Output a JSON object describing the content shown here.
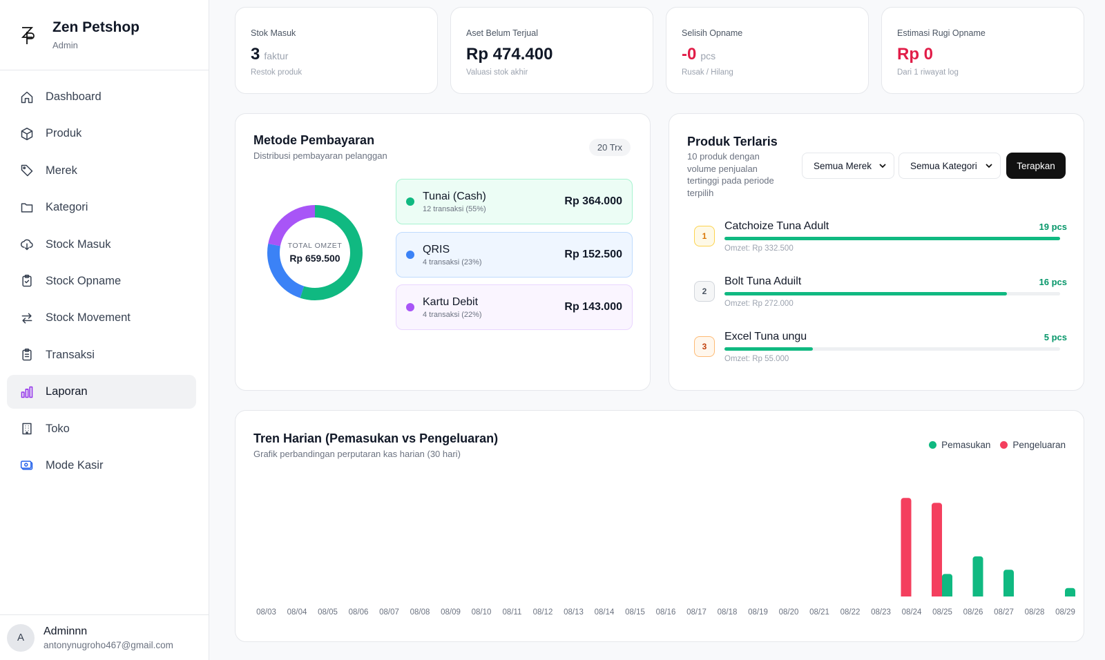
{
  "brand": {
    "name": "Zen Petshop",
    "role": "Admin",
    "logo_text": "ZP"
  },
  "nav": [
    {
      "label": "Dashboard",
      "icon": "home-icon",
      "active": false
    },
    {
      "label": "Produk",
      "icon": "box-icon",
      "active": false
    },
    {
      "label": "Merek",
      "icon": "tag-icon",
      "active": false
    },
    {
      "label": "Kategori",
      "icon": "folder-icon",
      "active": false
    },
    {
      "label": "Stock Masuk",
      "icon": "cloud-download-icon",
      "active": false
    },
    {
      "label": "Stock Opname",
      "icon": "clipboard-check-icon",
      "active": false
    },
    {
      "label": "Stock Movement",
      "icon": "arrows-swap-icon",
      "active": false
    },
    {
      "label": "Transaksi",
      "icon": "clipboard-list-icon",
      "active": false
    },
    {
      "label": "Laporan",
      "icon": "bar-chart-icon",
      "active": true
    },
    {
      "label": "Toko",
      "icon": "building-icon",
      "active": false
    },
    {
      "label": "Mode Kasir",
      "icon": "cash-register-icon",
      "active": false
    }
  ],
  "user": {
    "initial": "A",
    "name": "Adminnn",
    "email": "antonynugroho467@gmail.com"
  },
  "stats": [
    {
      "label": "Stok Masuk",
      "value": "3",
      "unit": "faktur",
      "sub": "Restok produk"
    },
    {
      "label": "Aset Belum Terjual",
      "value": "Rp 474.400",
      "unit": "",
      "sub": "Valuasi stok akhir"
    },
    {
      "label": "Selisih Opname",
      "value": "-0",
      "unit": "pcs",
      "sub": "Rusak / Hilang"
    },
    {
      "label": "Estimasi Rugi Opname",
      "value": "Rp 0",
      "unit": "",
      "sub": "Dari 1 riwayat log"
    }
  ],
  "payment": {
    "title": "Metode Pembayaran",
    "subtitle": "Distribusi pembayaran pelanggan",
    "badge": "20 Trx",
    "total_caption": "TOTAL OMZET",
    "total_value": "Rp 659.500",
    "methods": [
      {
        "name": "Tunai (Cash)",
        "meta": "12 transaksi (55%)",
        "amount": "Rp 364.000",
        "share": 55,
        "color": "#10b981",
        "bg": "#ecfdf5",
        "border": "#a7f3d0"
      },
      {
        "name": "QRIS",
        "meta": "4 transaksi (23%)",
        "amount": "Rp 152.500",
        "share": 23,
        "color": "#3b82f6",
        "bg": "#eff6ff",
        "border": "#bfdbfe"
      },
      {
        "name": "Kartu Debit",
        "meta": "4 transaksi (22%)",
        "amount": "Rp 143.000",
        "share": 22,
        "color": "#a855f7",
        "bg": "#faf5ff",
        "border": "#e9d5ff"
      }
    ]
  },
  "bestsellers": {
    "title": "Produk Terlaris",
    "subtitle": "10 produk dengan volume penjualan tertinggi pada periode terpilih",
    "filter_brand": "Semua Merek",
    "filter_category": "Semua Kategori",
    "apply_label": "Terapkan",
    "items": [
      {
        "rank": "1",
        "name": "Catchoize Tuna Adult",
        "qty": "19 pcs",
        "qty_value": 19,
        "omzet": "Omzet: Rp 332.500",
        "rank_bg": "#fef9e7",
        "rank_border": "#fcd34d",
        "rank_color": "#d97706"
      },
      {
        "rank": "2",
        "name": "Bolt Tuna Aduilt",
        "qty": "16 pcs",
        "qty_value": 16,
        "omzet": "Omzet: Rp 272.000",
        "rank_bg": "#f5f6f7",
        "rank_border": "#d1d5db",
        "rank_color": "#4b5563"
      },
      {
        "rank": "3",
        "name": "Excel Tuna ungu",
        "qty": "5 pcs",
        "qty_value": 5,
        "omzet": "Omzet: Rp 55.000",
        "rank_bg": "#fff7ed",
        "rank_border": "#fdba74",
        "rank_color": "#c2410c"
      }
    ]
  },
  "trend": {
    "title": "Tren Harian (Pemasukan vs Pengeluaran)",
    "subtitle": "Grafik perbandingan perputaran kas harian (30 hari)"
  },
  "chart_data": {
    "type": "bar",
    "categories": [
      "08/03",
      "08/04",
      "08/05",
      "08/06",
      "08/07",
      "08/08",
      "08/09",
      "08/10",
      "08/11",
      "08/12",
      "08/13",
      "08/14",
      "08/15",
      "08/16",
      "08/17",
      "08/18",
      "08/19",
      "08/20",
      "08/21",
      "08/22",
      "08/23",
      "08/24",
      "08/25",
      "08/26",
      "08/27",
      "08/28",
      "08/29"
    ],
    "series": [
      {
        "name": "Pemasukan",
        "color": "#10b981",
        "values": [
          0,
          0,
          0,
          0,
          0,
          0,
          0,
          0,
          0,
          0,
          0,
          0,
          0,
          0,
          0,
          0,
          0,
          0,
          0,
          0,
          0,
          0,
          32,
          57,
          38,
          0,
          12
        ]
      },
      {
        "name": "Pengeluaran",
        "color": "#f43f5e",
        "values": [
          0,
          0,
          0,
          0,
          0,
          0,
          0,
          0,
          0,
          0,
          0,
          0,
          0,
          0,
          0,
          0,
          0,
          0,
          0,
          0,
          0,
          140,
          133,
          0,
          0,
          0,
          0
        ]
      }
    ],
    "grid": false,
    "legend": "top-right"
  }
}
